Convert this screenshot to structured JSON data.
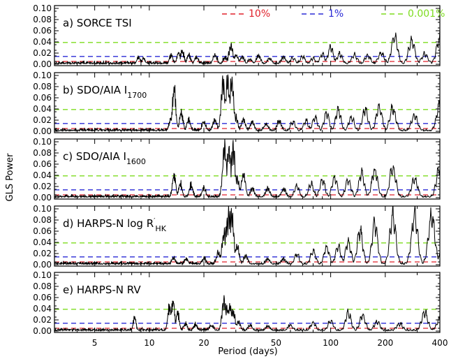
{
  "figure": {
    "ylabel": "GLS Power",
    "xlabel": "Period (days)",
    "legend": [
      {
        "label": "10%",
        "color": "#e0202a"
      },
      {
        "label": "1%",
        "color": "#2a2ad6"
      },
      {
        "label": "0.001%",
        "color": "#7ddc1f"
      }
    ]
  },
  "chart_data": {
    "type": "line",
    "x_scale": "log",
    "xlim": [
      3,
      400
    ],
    "xticks": [
      5,
      10,
      20,
      50,
      100,
      200,
      400
    ],
    "ylim": [
      0,
      0.1
    ],
    "yticks": [
      "0.00",
      "0.02",
      "0.04",
      "0.06",
      "0.08",
      "0.10"
    ],
    "line_color": "#000000",
    "significance_levels": [
      {
        "label": "10%",
        "color": "#e0202a",
        "power": 0.005
      },
      {
        "label": "1%",
        "color": "#2a2ad6",
        "power": 0.014
      },
      {
        "label": "0.001%",
        "color": "#7ddc1f",
        "power": 0.039
      }
    ],
    "panels": [
      {
        "letter": "a)",
        "name": "SORCE TSI",
        "sub": "",
        "sup": "",
        "peaks": [
          [
            8.7,
            0.015
          ],
          [
            9.3,
            0.012
          ],
          [
            13.2,
            0.018
          ],
          [
            14.5,
            0.025
          ],
          [
            15.2,
            0.028
          ],
          [
            16.5,
            0.02
          ],
          [
            18.2,
            0.015
          ],
          [
            23,
            0.02
          ],
          [
            26.2,
            0.014
          ],
          [
            28.2,
            0.038
          ],
          [
            30.1,
            0.02
          ],
          [
            32.5,
            0.017
          ],
          [
            36,
            0.01
          ],
          [
            40,
            0.019
          ],
          [
            46,
            0.012
          ],
          [
            55,
            0.016
          ],
          [
            62,
            0.013
          ],
          [
            70,
            0.017
          ],
          [
            80,
            0.012
          ],
          [
            90,
            0.022
          ],
          [
            100,
            0.038
          ],
          [
            112,
            0.022
          ],
          [
            135,
            0.02
          ],
          [
            160,
            0.018
          ],
          [
            190,
            0.025
          ],
          [
            225,
            0.063
          ],
          [
            280,
            0.052
          ],
          [
            330,
            0.022
          ],
          [
            400,
            0.06
          ]
        ]
      },
      {
        "letter": "b)",
        "name": "SDO/AIA I",
        "sub": "1700",
        "sup": "",
        "peaks": [
          [
            13.1,
            0.025
          ],
          [
            13.7,
            0.095
          ],
          [
            15,
            0.04
          ],
          [
            16.5,
            0.025
          ],
          [
            20,
            0.02
          ],
          [
            23,
            0.025
          ],
          [
            25.5,
            0.11
          ],
          [
            27,
            0.11
          ],
          [
            28.5,
            0.11
          ],
          [
            30,
            0.03
          ],
          [
            33,
            0.025
          ],
          [
            37,
            0.02
          ],
          [
            44,
            0.015
          ],
          [
            52,
            0.022
          ],
          [
            62,
            0.02
          ],
          [
            73,
            0.022
          ],
          [
            82,
            0.03
          ],
          [
            95,
            0.04
          ],
          [
            110,
            0.048
          ],
          [
            130,
            0.03
          ],
          [
            155,
            0.048
          ],
          [
            185,
            0.055
          ],
          [
            220,
            0.05
          ],
          [
            290,
            0.035
          ],
          [
            400,
            0.06
          ]
        ]
      },
      {
        "letter": "c)",
        "name": "SDO/AIA I",
        "sub": "1600",
        "sup": "",
        "peaks": [
          [
            13.7,
            0.05
          ],
          [
            14.8,
            0.03
          ],
          [
            17,
            0.025
          ],
          [
            20,
            0.02
          ],
          [
            26,
            0.11
          ],
          [
            27.5,
            0.11
          ],
          [
            29,
            0.11
          ],
          [
            30.5,
            0.04
          ],
          [
            33,
            0.052
          ],
          [
            37,
            0.02
          ],
          [
            45,
            0.02
          ],
          [
            55,
            0.018
          ],
          [
            65,
            0.025
          ],
          [
            78,
            0.03
          ],
          [
            90,
            0.04
          ],
          [
            105,
            0.045
          ],
          [
            125,
            0.04
          ],
          [
            148,
            0.055
          ],
          [
            175,
            0.062
          ],
          [
            220,
            0.068
          ],
          [
            290,
            0.04
          ],
          [
            400,
            0.07
          ]
        ]
      },
      {
        "letter": "d)",
        "name": "HARPS-N log R",
        "sub": "HK",
        "sup": "′",
        "peaks": [
          [
            13.6,
            0.015
          ],
          [
            16,
            0.012
          ],
          [
            20,
            0.012
          ],
          [
            24,
            0.025
          ],
          [
            25.8,
            0.07
          ],
          [
            26.8,
            0.09
          ],
          [
            27.5,
            0.11
          ],
          [
            28.5,
            0.11
          ],
          [
            30.5,
            0.04
          ],
          [
            34,
            0.02
          ],
          [
            45,
            0.012
          ],
          [
            55,
            0.012
          ],
          [
            65,
            0.022
          ],
          [
            80,
            0.03
          ],
          [
            95,
            0.04
          ],
          [
            110,
            0.04
          ],
          [
            125,
            0.05
          ],
          [
            145,
            0.075
          ],
          [
            175,
            0.092
          ],
          [
            220,
            0.11
          ],
          [
            290,
            0.11
          ],
          [
            360,
            0.11
          ],
          [
            400,
            0.02
          ]
        ]
      },
      {
        "letter": "e)",
        "name": "HARPS-N RV",
        "sub": "",
        "sup": "",
        "peaks": [
          [
            8.3,
            0.03
          ],
          [
            12.9,
            0.052
          ],
          [
            13.5,
            0.068
          ],
          [
            14.3,
            0.04
          ],
          [
            15.8,
            0.015
          ],
          [
            18,
            0.012
          ],
          [
            22,
            0.012
          ],
          [
            25.8,
            0.068
          ],
          [
            26.8,
            0.05
          ],
          [
            27.8,
            0.055
          ],
          [
            29,
            0.04
          ],
          [
            31,
            0.02
          ],
          [
            36,
            0.012
          ],
          [
            45,
            0.01
          ],
          [
            60,
            0.012
          ],
          [
            80,
            0.018
          ],
          [
            100,
            0.022
          ],
          [
            125,
            0.04
          ],
          [
            150,
            0.035
          ],
          [
            180,
            0.02
          ],
          [
            240,
            0.015
          ],
          [
            330,
            0.04
          ],
          [
            400,
            0.025
          ]
        ]
      }
    ]
  }
}
